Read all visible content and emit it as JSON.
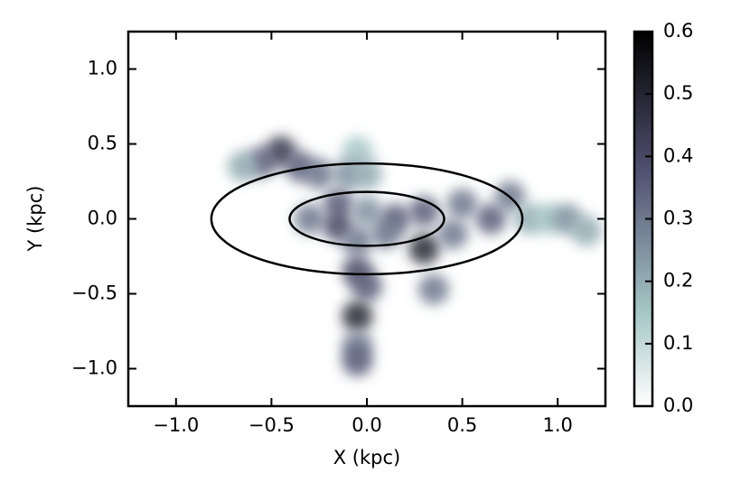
{
  "chart_data": {
    "type": "heatmap",
    "xlabel": "X (kpc)",
    "ylabel": "Y (kpc)",
    "xlim": [
      -1.25,
      1.25
    ],
    "ylim": [
      -1.25,
      1.25
    ],
    "xticks": [
      {
        "value": -1.0,
        "label": "−1.0"
      },
      {
        "value": -0.5,
        "label": "−0.5"
      },
      {
        "value": 0,
        "label": "0.0"
      },
      {
        "value": 0.5,
        "label": "0.5"
      },
      {
        "value": 1.0,
        "label": "1.0"
      }
    ],
    "yticks": [
      {
        "value": -1.0,
        "label": "−1.0"
      },
      {
        "value": -0.5,
        "label": "−0.5"
      },
      {
        "value": 0,
        "label": "0.0"
      },
      {
        "value": 0.5,
        "label": "0.5"
      },
      {
        "value": 1.0,
        "label": "1.0"
      }
    ],
    "colormap": "bone_r",
    "clim": [
      0,
      0.6
    ],
    "cticks": [
      {
        "value": 0,
        "label": "0.0"
      },
      {
        "value": 0.1,
        "label": "0.1"
      },
      {
        "value": 0.2,
        "label": "0.2"
      },
      {
        "value": 0.3,
        "label": "0.3"
      },
      {
        "value": 0.4,
        "label": "0.4"
      },
      {
        "value": 0.5,
        "label": "0.5"
      },
      {
        "value": 0.6,
        "label": "0.6"
      }
    ],
    "x": [
      -0.45,
      -0.55,
      -0.35,
      -0.25,
      -0.65,
      -0.05,
      -0.1,
      0.0,
      -0.15,
      -0.3,
      -0.15,
      0.0,
      0.15,
      0.3,
      0.1,
      -0.05,
      0.3,
      0.45,
      0.5,
      0.65,
      0.75,
      0.85,
      0.95,
      1.05,
      1.15,
      0.35,
      -0.05,
      0.0,
      -0.05,
      -0.05,
      -0.05
    ],
    "y": [
      0.45,
      0.38,
      0.35,
      0.3,
      0.35,
      0.45,
      0.3,
      0.3,
      0.1,
      0.0,
      -0.05,
      0.05,
      0.0,
      0.05,
      -0.1,
      -0.15,
      -0.2,
      -0.1,
      0.1,
      0.0,
      0.15,
      0.0,
      0.0,
      0.0,
      -0.08,
      -0.47,
      -0.35,
      -0.45,
      -0.65,
      -0.85,
      -0.95
    ],
    "values": [
      0.45,
      0.35,
      0.35,
      0.3,
      0.2,
      0.15,
      0.25,
      0.2,
      0.35,
      0.3,
      0.4,
      0.25,
      0.35,
      0.35,
      0.3,
      0.3,
      0.5,
      0.3,
      0.3,
      0.35,
      0.3,
      0.2,
      0.15,
      0.25,
      0.2,
      0.3,
      0.4,
      0.35,
      0.5,
      0.3,
      0.35
    ],
    "ellipses": [
      {
        "x": 0,
        "y": 0,
        "a": 0.815,
        "b": 0.37
      },
      {
        "x": 0,
        "y": 0,
        "a": 0.405,
        "b": 0.18
      }
    ]
  }
}
